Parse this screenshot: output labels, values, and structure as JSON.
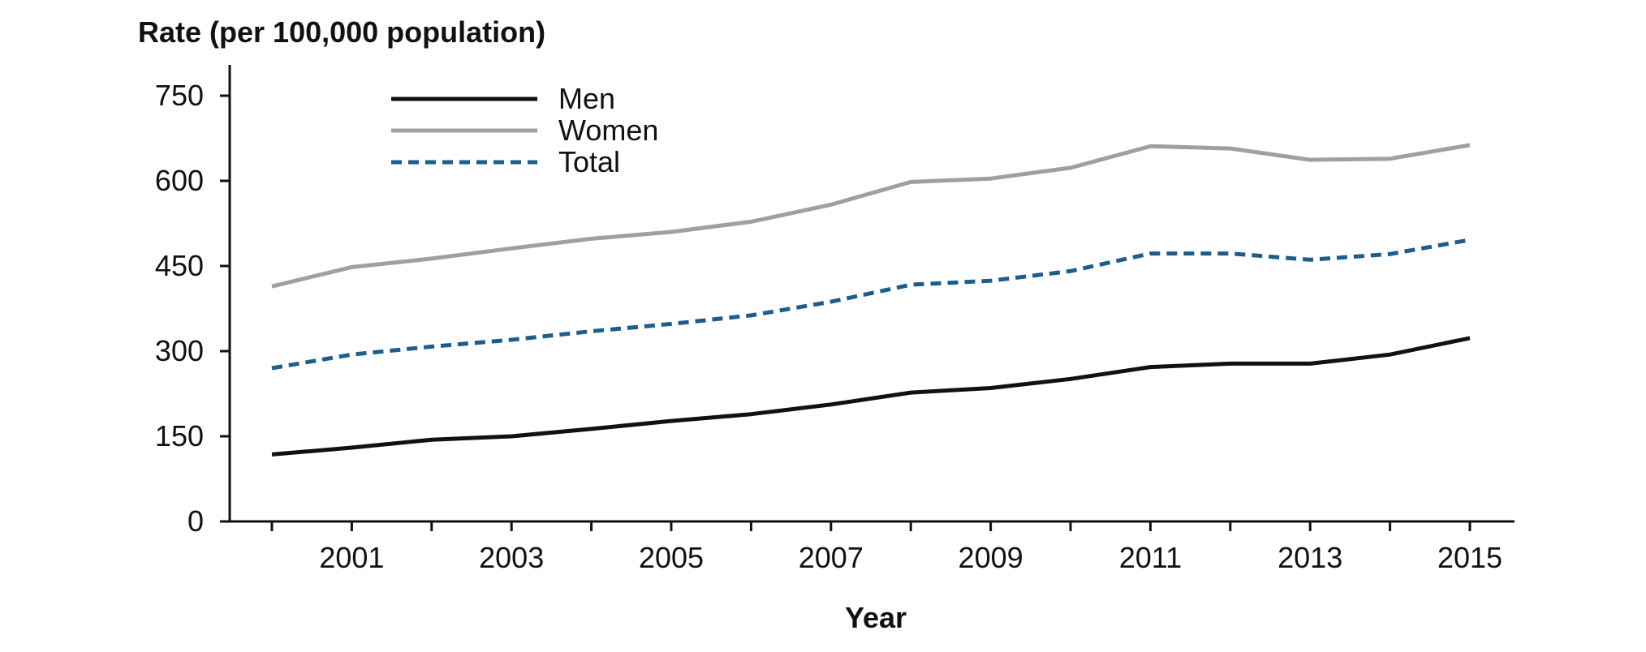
{
  "chart_data": {
    "type": "line",
    "title": "",
    "ylabel": "Rate (per 100,000 population)",
    "xlabel": "Year",
    "x": [
      2000,
      2001,
      2002,
      2003,
      2004,
      2005,
      2006,
      2007,
      2008,
      2009,
      2010,
      2011,
      2012,
      2013,
      2014,
      2015
    ],
    "x_tick_labels": [
      "2001",
      "2003",
      "2005",
      "2007",
      "2009",
      "2011",
      "2013",
      "2015"
    ],
    "y_ticks": [
      "0",
      "150",
      "300",
      "450",
      "600",
      "750"
    ],
    "ylim": [
      0,
      800
    ],
    "xlim": [
      1999.4,
      2015.5
    ],
    "grid": false,
    "legend_position": "top-left",
    "series": [
      {
        "name": "Men",
        "color": "#111111",
        "style": "solid",
        "values": [
          118,
          130,
          144,
          150,
          163,
          177,
          189,
          206,
          227,
          235,
          251,
          272,
          278,
          278,
          294,
          323
        ]
      },
      {
        "name": "Women",
        "color": "#a0a0a0",
        "style": "solid",
        "values": [
          414,
          448,
          463,
          481,
          498,
          510,
          528,
          558,
          598,
          604,
          623,
          661,
          657,
          637,
          639,
          663
        ]
      },
      {
        "name": "Total",
        "color": "#1a5e8e",
        "style": "dashed",
        "values": [
          270,
          294,
          308,
          320,
          335,
          348,
          363,
          387,
          417,
          424,
          441,
          472,
          472,
          461,
          471,
          496
        ]
      }
    ]
  }
}
